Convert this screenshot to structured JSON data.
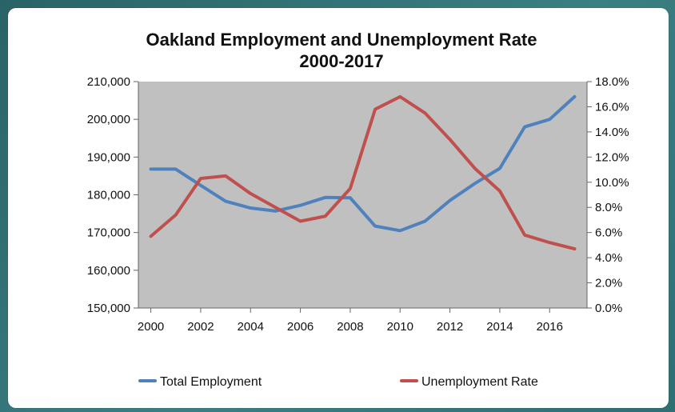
{
  "chart_data": {
    "type": "line",
    "title": "Oakland Employment and Unemployment Rate",
    "subtitle": "2000-2017",
    "x": [
      2000,
      2001,
      2002,
      2003,
      2004,
      2005,
      2006,
      2007,
      2008,
      2009,
      2010,
      2011,
      2012,
      2013,
      2014,
      2015,
      2016,
      2017
    ],
    "x_ticks": [
      2000,
      2002,
      2004,
      2006,
      2008,
      2010,
      2012,
      2014,
      2016
    ],
    "x_tick_labels": [
      "2000",
      "2002",
      "2004",
      "2006",
      "2008",
      "2010",
      "2012",
      "2014",
      "2016"
    ],
    "xlim": [
      1999.5,
      2017.5
    ],
    "y_left": {
      "lim": [
        150000,
        210000
      ],
      "ticks": [
        150000,
        160000,
        170000,
        180000,
        190000,
        200000,
        210000
      ],
      "tick_labels": [
        "150,000",
        "160,000",
        "170,000",
        "180,000",
        "190,000",
        "200,000",
        "210,000"
      ]
    },
    "y_right": {
      "lim": [
        0,
        18
      ],
      "ticks": [
        0,
        2,
        4,
        6,
        8,
        10,
        12,
        14,
        16,
        18
      ],
      "tick_labels": [
        "0.0%",
        "2.0%",
        "4.0%",
        "6.0%",
        "8.0%",
        "10.0%",
        "12.0%",
        "14.0%",
        "16.0%",
        "18.0%"
      ]
    },
    "series": [
      {
        "name": "Total Employment",
        "axis": "left",
        "color": "#4f81bd",
        "values": [
          186800,
          186800,
          182500,
          178300,
          176500,
          175700,
          177200,
          179300,
          179200,
          171700,
          170500,
          173000,
          178500,
          183000,
          187000,
          198000,
          200000,
          206000
        ]
      },
      {
        "name": "Unemployment Rate",
        "axis": "right",
        "color": "#c0504d",
        "values": [
          5.7,
          7.4,
          10.3,
          10.5,
          9.1,
          8.0,
          6.9,
          7.3,
          9.5,
          15.8,
          16.8,
          15.5,
          13.4,
          11.1,
          9.3,
          5.8,
          5.2,
          4.7
        ]
      }
    ],
    "grid": false,
    "plot_background": "#c0c0c0",
    "legend_position": "bottom"
  }
}
